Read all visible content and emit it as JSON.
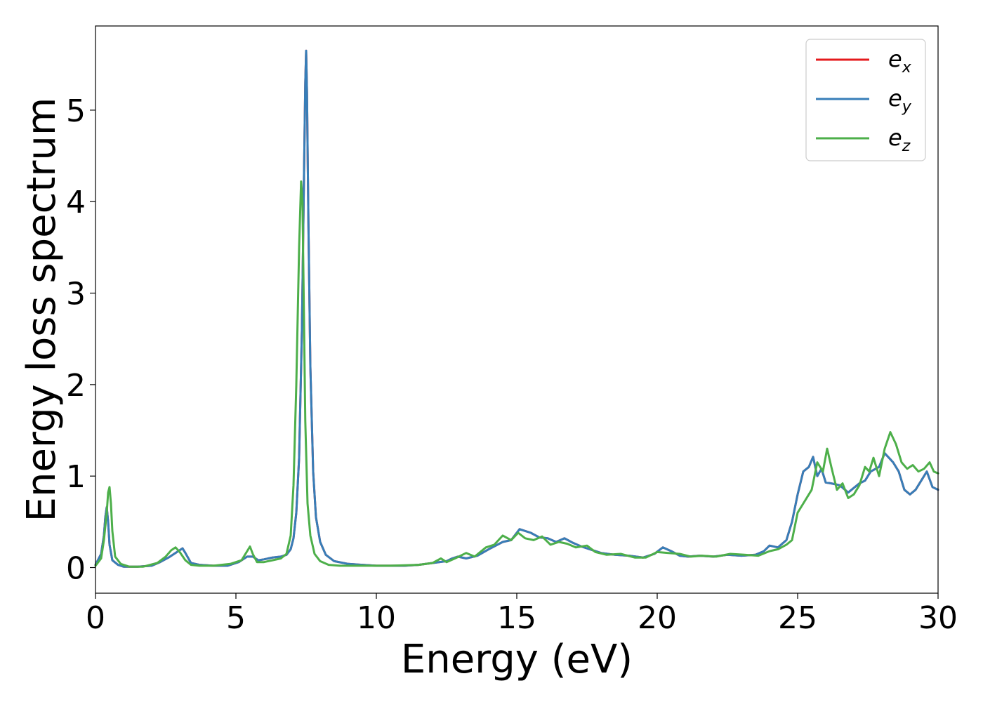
{
  "chart_data": {
    "type": "line",
    "title": "",
    "xlabel": "Energy (eV)",
    "ylabel": "Energy loss spectrum",
    "xlim": [
      0,
      30
    ],
    "ylim": [
      -0.28,
      5.92
    ],
    "xticks": [
      0,
      5,
      10,
      15,
      20,
      25,
      30
    ],
    "xtick_labels": [
      "0",
      "5",
      "10",
      "15",
      "20",
      "25",
      "30"
    ],
    "yticks": [
      0,
      1,
      2,
      3,
      4,
      5
    ],
    "ytick_labels": [
      "0",
      "1",
      "2",
      "3",
      "4",
      "5"
    ],
    "grid": false,
    "legend": "top-right",
    "series": [
      {
        "name": "e_x",
        "legend_base": "e",
        "legend_sub": "x",
        "color": "#e41a1c",
        "x": [
          0,
          0.2,
          0.3,
          0.35,
          0.4,
          0.45,
          0.5,
          0.6,
          0.8,
          1.0,
          1.5,
          2.0,
          2.3,
          2.6,
          2.9,
          3.1,
          3.2,
          3.4,
          3.7,
          4.2,
          4.7,
          5.1,
          5.4,
          5.6,
          5.8,
          6.0,
          6.3,
          6.6,
          6.8,
          6.95,
          7.05,
          7.15,
          7.25,
          7.35,
          7.42,
          7.47,
          7.5,
          7.53,
          7.58,
          7.65,
          7.75,
          7.85,
          8.0,
          8.2,
          8.5,
          9.0,
          10.0,
          11.0,
          11.5,
          12.0,
          12.5,
          12.7,
          12.9,
          13.2,
          13.6,
          14.0,
          14.5,
          14.8,
          15.1,
          15.5,
          15.8,
          16.1,
          16.4,
          16.7,
          17.0,
          17.3,
          17.6,
          18.0,
          18.5,
          19.0,
          19.5,
          19.9,
          20.2,
          20.5,
          20.8,
          21.1,
          21.5,
          22.0,
          22.5,
          23.0,
          23.5,
          23.8,
          24.0,
          24.3,
          24.6,
          24.8,
          25.0,
          25.2,
          25.4,
          25.55,
          25.7,
          25.85,
          26.0,
          26.2,
          26.5,
          26.8,
          27.0,
          27.2,
          27.4,
          27.6,
          27.9,
          28.1,
          28.4,
          28.6,
          28.8,
          29.0,
          29.2,
          29.4,
          29.6,
          29.8,
          30.0
        ],
        "y": [
          0.03,
          0.15,
          0.35,
          0.55,
          0.66,
          0.5,
          0.25,
          0.08,
          0.03,
          0.01,
          0.01,
          0.02,
          0.06,
          0.11,
          0.17,
          0.21,
          0.16,
          0.05,
          0.03,
          0.02,
          0.02,
          0.06,
          0.12,
          0.12,
          0.08,
          0.09,
          0.11,
          0.12,
          0.14,
          0.2,
          0.32,
          0.6,
          1.2,
          2.6,
          4.2,
          5.3,
          5.65,
          5.2,
          3.8,
          2.2,
          1.05,
          0.55,
          0.28,
          0.14,
          0.07,
          0.04,
          0.02,
          0.02,
          0.03,
          0.05,
          0.07,
          0.1,
          0.12,
          0.1,
          0.13,
          0.2,
          0.28,
          0.3,
          0.42,
          0.38,
          0.33,
          0.32,
          0.28,
          0.32,
          0.27,
          0.23,
          0.2,
          0.16,
          0.14,
          0.13,
          0.11,
          0.15,
          0.22,
          0.18,
          0.13,
          0.12,
          0.13,
          0.12,
          0.14,
          0.13,
          0.14,
          0.18,
          0.24,
          0.22,
          0.3,
          0.5,
          0.8,
          1.05,
          1.1,
          1.21,
          1.0,
          1.08,
          0.93,
          0.92,
          0.9,
          0.82,
          0.87,
          0.92,
          0.95,
          1.05,
          1.1,
          1.25,
          1.15,
          1.05,
          0.85,
          0.8,
          0.85,
          0.95,
          1.05,
          0.88,
          0.85
        ]
      },
      {
        "name": "e_y",
        "legend_base": "e",
        "legend_sub": "y",
        "color": "#377eb8",
        "x": [
          0,
          0.2,
          0.3,
          0.35,
          0.4,
          0.45,
          0.5,
          0.6,
          0.8,
          1.0,
          1.5,
          2.0,
          2.3,
          2.6,
          2.9,
          3.1,
          3.2,
          3.4,
          3.7,
          4.2,
          4.7,
          5.1,
          5.4,
          5.6,
          5.8,
          6.0,
          6.3,
          6.6,
          6.8,
          6.95,
          7.05,
          7.15,
          7.25,
          7.35,
          7.42,
          7.47,
          7.5,
          7.53,
          7.58,
          7.65,
          7.75,
          7.85,
          8.0,
          8.2,
          8.5,
          9.0,
          10.0,
          11.0,
          11.5,
          12.0,
          12.5,
          12.7,
          12.9,
          13.2,
          13.6,
          14.0,
          14.5,
          14.8,
          15.1,
          15.5,
          15.8,
          16.1,
          16.4,
          16.7,
          17.0,
          17.3,
          17.6,
          18.0,
          18.5,
          19.0,
          19.5,
          19.9,
          20.2,
          20.5,
          20.8,
          21.1,
          21.5,
          22.0,
          22.5,
          23.0,
          23.5,
          23.8,
          24.0,
          24.3,
          24.6,
          24.8,
          25.0,
          25.2,
          25.4,
          25.55,
          25.7,
          25.85,
          26.0,
          26.2,
          26.5,
          26.8,
          27.0,
          27.2,
          27.4,
          27.6,
          27.9,
          28.1,
          28.4,
          28.6,
          28.8,
          29.0,
          29.2,
          29.4,
          29.6,
          29.8,
          30.0
        ],
        "y": [
          0.03,
          0.15,
          0.35,
          0.55,
          0.66,
          0.5,
          0.25,
          0.08,
          0.03,
          0.01,
          0.01,
          0.02,
          0.06,
          0.11,
          0.17,
          0.21,
          0.16,
          0.05,
          0.03,
          0.02,
          0.02,
          0.06,
          0.12,
          0.12,
          0.08,
          0.09,
          0.11,
          0.12,
          0.14,
          0.2,
          0.32,
          0.6,
          1.2,
          2.6,
          4.2,
          5.3,
          5.65,
          5.2,
          3.8,
          2.2,
          1.05,
          0.55,
          0.28,
          0.14,
          0.07,
          0.04,
          0.02,
          0.02,
          0.03,
          0.05,
          0.07,
          0.1,
          0.12,
          0.1,
          0.13,
          0.2,
          0.28,
          0.3,
          0.42,
          0.38,
          0.33,
          0.32,
          0.28,
          0.32,
          0.27,
          0.23,
          0.2,
          0.16,
          0.14,
          0.13,
          0.11,
          0.15,
          0.22,
          0.18,
          0.13,
          0.12,
          0.13,
          0.12,
          0.14,
          0.13,
          0.14,
          0.18,
          0.24,
          0.22,
          0.3,
          0.5,
          0.8,
          1.05,
          1.1,
          1.21,
          1.0,
          1.08,
          0.93,
          0.92,
          0.9,
          0.82,
          0.87,
          0.92,
          0.95,
          1.05,
          1.1,
          1.25,
          1.15,
          1.05,
          0.85,
          0.8,
          0.85,
          0.95,
          1.05,
          0.88,
          0.85
        ]
      },
      {
        "name": "e_z",
        "legend_base": "e",
        "legend_sub": "z",
        "color": "#4daf4a",
        "x": [
          0,
          0.2,
          0.3,
          0.4,
          0.45,
          0.5,
          0.55,
          0.6,
          0.7,
          0.9,
          1.2,
          1.7,
          2.2,
          2.5,
          2.7,
          2.85,
          3.0,
          3.2,
          3.4,
          3.7,
          4.2,
          4.8,
          5.2,
          5.4,
          5.5,
          5.6,
          5.75,
          6.0,
          6.3,
          6.6,
          6.8,
          6.95,
          7.05,
          7.15,
          7.25,
          7.32,
          7.37,
          7.42,
          7.47,
          7.55,
          7.65,
          7.8,
          8.0,
          8.3,
          8.7,
          9.5,
          10.5,
          11.5,
          12.0,
          12.3,
          12.5,
          12.8,
          13.2,
          13.5,
          13.9,
          14.2,
          14.5,
          14.8,
          15.05,
          15.3,
          15.6,
          15.9,
          16.2,
          16.5,
          16.8,
          17.1,
          17.5,
          17.8,
          18.2,
          18.7,
          19.2,
          19.6,
          20.0,
          20.4,
          20.8,
          21.2,
          21.6,
          22.1,
          22.6,
          23.1,
          23.6,
          24.0,
          24.3,
          24.6,
          24.8,
          25.0,
          25.3,
          25.5,
          25.7,
          25.9,
          26.05,
          26.2,
          26.4,
          26.6,
          26.8,
          27.0,
          27.2,
          27.4,
          27.55,
          27.7,
          27.9,
          28.1,
          28.3,
          28.5,
          28.7,
          28.9,
          29.1,
          29.3,
          29.5,
          29.7,
          29.85,
          30.0
        ],
        "y": [
          0.02,
          0.1,
          0.3,
          0.6,
          0.82,
          0.88,
          0.7,
          0.4,
          0.12,
          0.04,
          0.01,
          0.01,
          0.05,
          0.12,
          0.19,
          0.22,
          0.17,
          0.08,
          0.03,
          0.02,
          0.02,
          0.04,
          0.08,
          0.18,
          0.23,
          0.15,
          0.06,
          0.06,
          0.08,
          0.1,
          0.15,
          0.35,
          0.9,
          2.0,
          3.5,
          4.22,
          4.0,
          2.8,
          1.6,
          0.7,
          0.35,
          0.15,
          0.07,
          0.03,
          0.02,
          0.02,
          0.02,
          0.03,
          0.05,
          0.1,
          0.06,
          0.1,
          0.16,
          0.12,
          0.22,
          0.25,
          0.35,
          0.3,
          0.38,
          0.32,
          0.3,
          0.34,
          0.25,
          0.28,
          0.26,
          0.22,
          0.24,
          0.17,
          0.14,
          0.15,
          0.11,
          0.11,
          0.17,
          0.16,
          0.15,
          0.12,
          0.13,
          0.12,
          0.15,
          0.14,
          0.13,
          0.18,
          0.2,
          0.25,
          0.3,
          0.6,
          0.75,
          0.85,
          1.15,
          1.05,
          1.3,
          1.1,
          0.85,
          0.92,
          0.76,
          0.8,
          0.9,
          1.1,
          1.05,
          1.2,
          1.0,
          1.3,
          1.48,
          1.35,
          1.15,
          1.08,
          1.12,
          1.05,
          1.08,
          1.15,
          1.05,
          1.03
        ]
      }
    ]
  }
}
